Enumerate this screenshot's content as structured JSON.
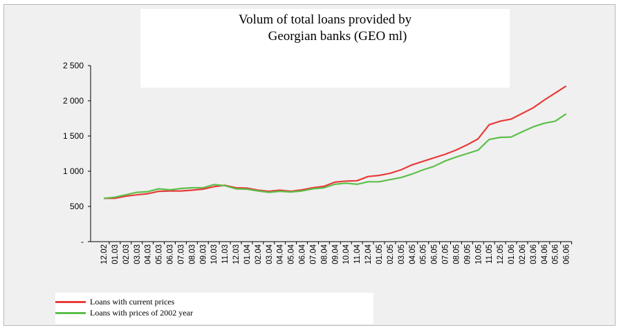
{
  "chart_data": {
    "type": "line",
    "title_line1": "Volum of total loans provided by",
    "title_line2": "Georgian banks (GEO ml)",
    "xlabel": "",
    "ylabel": "",
    "ylim": [
      0,
      2500
    ],
    "yticks": [
      {
        "value": 0,
        "label": "-"
      },
      {
        "value": 500,
        "label": "500"
      },
      {
        "value": 1000,
        "label": "1 000"
      },
      {
        "value": 1500,
        "label": "1 500"
      },
      {
        "value": 2000,
        "label": "2 000"
      },
      {
        "value": 2500,
        "label": "2 500"
      }
    ],
    "grid": false,
    "legend_position": "bottom-left",
    "categories": [
      "12.02",
      "01.03",
      "02.03",
      "03.03",
      "04.03",
      "05.03",
      "06.03",
      "07.03",
      "08.03",
      "09.03",
      "10.03",
      "11.03",
      "12.03",
      "01.04",
      "02.04",
      "03.04",
      "04.04",
      "05.04",
      "06.04",
      "07.04",
      "08.04",
      "09.04",
      "10.04",
      "11.04",
      "12.04",
      "01.05",
      "02.05",
      "03.05",
      "04.05",
      "05.05",
      "06.05",
      "07.05",
      "08.05",
      "09.05",
      "10.05",
      "11.05",
      "12.05",
      "01.06",
      "02.06",
      "03.06",
      "04.06",
      "05.06",
      "06.06"
    ],
    "series": [
      {
        "name": "Loans with current prices",
        "color": "#e83a3a",
        "values": [
          615,
          615,
          645,
          665,
          680,
          715,
          720,
          720,
          730,
          745,
          780,
          800,
          765,
          760,
          730,
          715,
          730,
          715,
          735,
          765,
          785,
          845,
          860,
          865,
          925,
          940,
          970,
          1020,
          1090,
          1140,
          1190,
          1240,
          1300,
          1375,
          1460,
          1660,
          1710,
          1740,
          1820,
          1900,
          2010,
          2110,
          2210
        ]
      },
      {
        "name": "Loans with prices of 2002 year",
        "color": "#5cbf4a",
        "values": [
          615,
          630,
          665,
          700,
          710,
          750,
          735,
          755,
          765,
          765,
          810,
          795,
          750,
          745,
          720,
          700,
          715,
          705,
          720,
          750,
          765,
          815,
          830,
          815,
          850,
          850,
          880,
          910,
          960,
          1020,
          1070,
          1145,
          1200,
          1250,
          1300,
          1450,
          1480,
          1485,
          1560,
          1630,
          1680,
          1710,
          1815
        ]
      }
    ]
  }
}
